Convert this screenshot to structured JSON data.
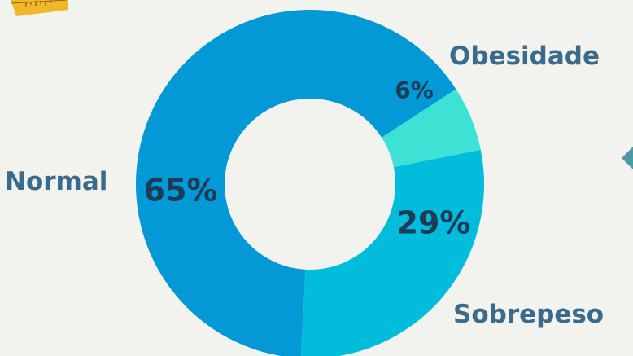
{
  "chart_data": {
    "type": "pie",
    "variant": "donut",
    "categories": [
      "Normal",
      "Sobrepeso",
      "Obesidade"
    ],
    "values": [
      65,
      29,
      6
    ],
    "value_labels": [
      "65%",
      "29%",
      "6%"
    ],
    "colors": [
      "#0399d6",
      "#02bcdc",
      "#3ee2d4"
    ],
    "label_color": "#3a6b8c",
    "value_label_color": "#1d3b57",
    "background": "#f2f2ef"
  },
  "decorations": {
    "tape_color": "#f0b72a",
    "marker_color": "#4d99a8"
  }
}
